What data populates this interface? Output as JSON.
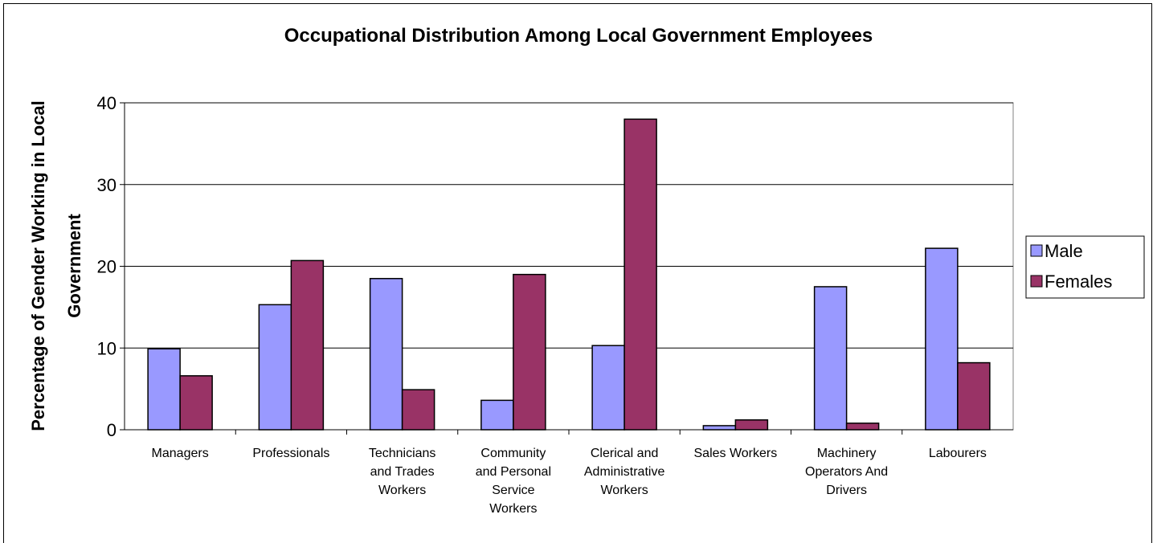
{
  "chart_data": {
    "type": "bar",
    "title": "Occupational Distribution Among Local Government Employees",
    "ylabel_lines": [
      "Percentage of Gender Working in Local",
      "Government"
    ],
    "xlabel": "",
    "ylim": [
      0,
      40
    ],
    "yticks": [
      0,
      10,
      20,
      30,
      40
    ],
    "grid": true,
    "legend_position": "right",
    "categories": [
      [
        "Managers"
      ],
      [
        "Professionals"
      ],
      [
        "Technicians",
        "and Trades",
        "Workers"
      ],
      [
        "Community",
        "and Personal",
        "Service",
        "Workers"
      ],
      [
        "Clerical and",
        "Administrative",
        "Workers"
      ],
      [
        "Sales Workers"
      ],
      [
        "Machinery",
        "Operators And",
        "Drivers"
      ],
      [
        "Labourers"
      ]
    ],
    "series": [
      {
        "name": "Male",
        "color": "#9999ff",
        "values": [
          9.9,
          15.3,
          18.5,
          3.6,
          10.3,
          0.5,
          17.5,
          22.2
        ]
      },
      {
        "name": "Females",
        "color": "#993366",
        "values": [
          6.6,
          20.7,
          4.9,
          19.0,
          38.0,
          1.2,
          0.8,
          8.2
        ]
      }
    ]
  }
}
